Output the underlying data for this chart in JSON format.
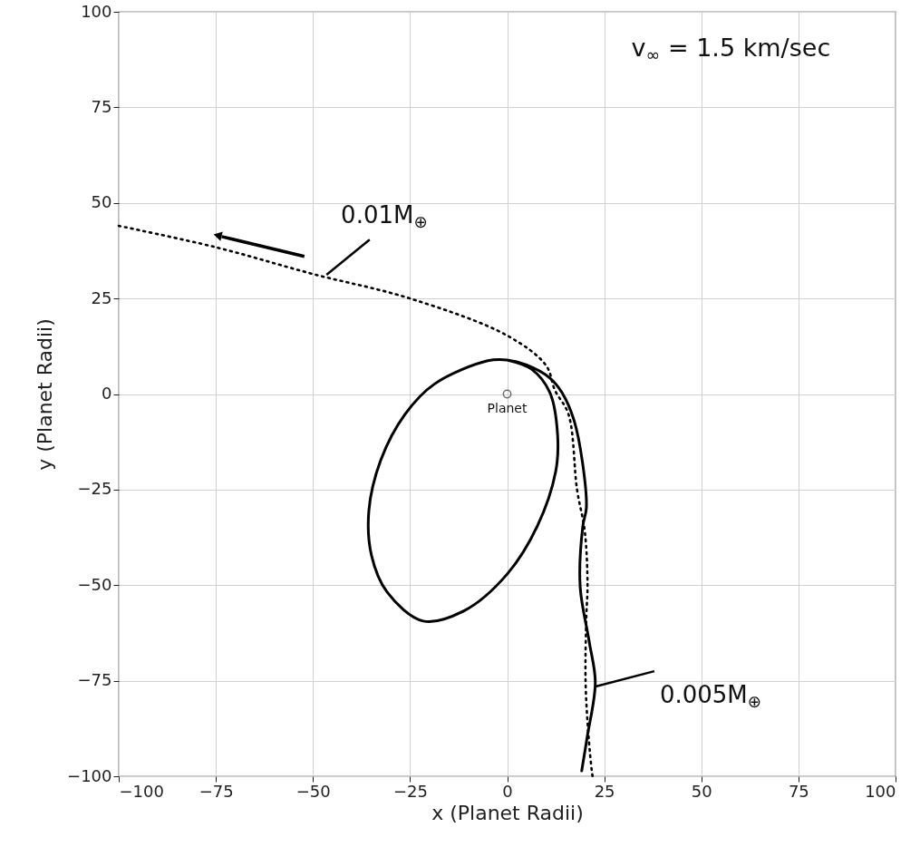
{
  "chart_data": {
    "type": "line",
    "xlabel": "x (Planet Radii)",
    "ylabel": "y (Planet Radii)",
    "xlim": [
      -100,
      100
    ],
    "ylim": [
      -100,
      100
    ],
    "xticks": [
      -100,
      -75,
      -50,
      -25,
      0,
      25,
      50,
      75,
      100
    ],
    "yticks": [
      -100,
      -75,
      -50,
      -25,
      0,
      25,
      50,
      75,
      100
    ],
    "grid": true,
    "annotations": [
      "v$_{∞}$ = 1.5 km/sec"
    ],
    "series": [
      {
        "name": "0.01M$_{⊕}$",
        "line_style": "dotted",
        "color": "#000000",
        "x": [
          -100,
          -75,
          -50,
          -25,
          0,
          10,
          12.3,
          15.8,
          18,
          20,
          20.7,
          20.4,
          20.2,
          21,
          21.8,
          22
        ],
        "values": [
          44,
          38.4,
          31.4,
          25,
          15.3,
          7.5,
          1,
          -5.3,
          -25,
          -36,
          -50,
          -58,
          -75.5,
          -90,
          -98.6,
          -100
        ]
      },
      {
        "name": "0.005M$_{⊕}$",
        "line_style": "solid",
        "color": "#000000",
        "x": [
          19.2,
          20.6,
          22.7,
          21.1,
          18.8,
          19.5,
          20.4,
          19.5,
          17.2,
          14.1,
          11,
          5,
          0,
          -5,
          -18.6,
          -26.3,
          -32.5,
          -35.6,
          -34.9,
          -30.9,
          -21.6,
          -10.9,
          0.1,
          7.8,
          12.5,
          13,
          11,
          6.3,
          0
        ],
        "values": [
          -98.6,
          -89.8,
          -75.5,
          -64.6,
          -50.4,
          -34.5,
          -29.8,
          -18.6,
          -6.8,
          0.4,
          4.2,
          7.6,
          8.9,
          8.7,
          2.7,
          -5.3,
          -17.2,
          -30.5,
          -42.3,
          -51.8,
          -59.4,
          -56.6,
          -47,
          -34.5,
          -20.3,
          -10.8,
          0.4,
          6.5,
          8.9
        ]
      },
      {
        "name": "Planet",
        "type": "scatter",
        "marker": "circle",
        "color": "#333333",
        "x": [
          0
        ],
        "values": [
          0
        ]
      }
    ]
  }
}
